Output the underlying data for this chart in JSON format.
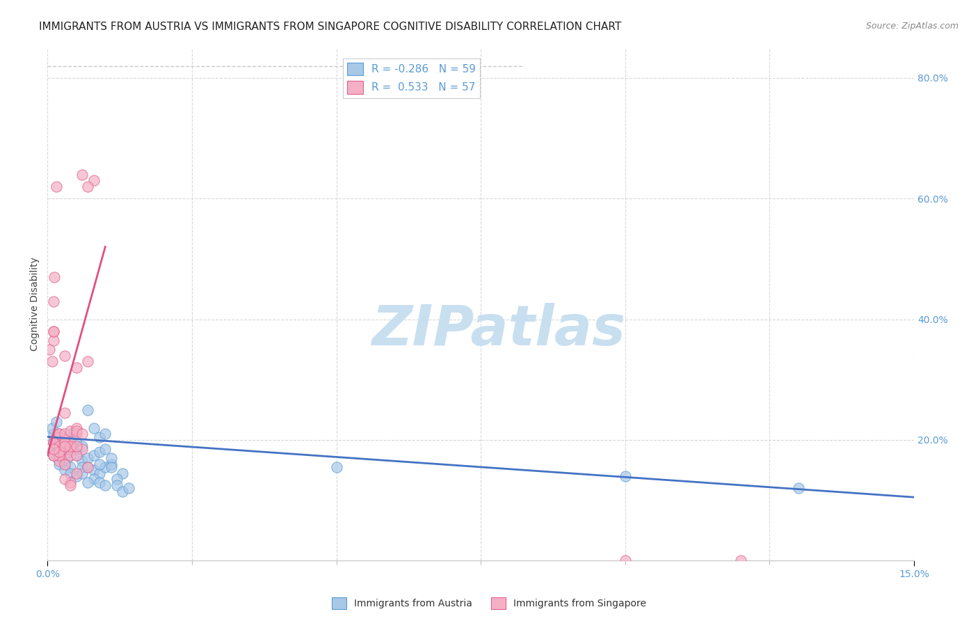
{
  "title": "IMMIGRANTS FROM AUSTRIA VS IMMIGRANTS FROM SINGAPORE COGNITIVE DISABILITY CORRELATION CHART",
  "source": "Source: ZipAtlas.com",
  "ylabel": "Cognitive Disability",
  "right_yticks": [
    0.2,
    0.4,
    0.6,
    0.8
  ],
  "right_ytick_labels": [
    "20.0%",
    "40.0%",
    "60.0%",
    "80.0%"
  ],
  "xlim": [
    0.0,
    0.15
  ],
  "ylim": [
    0.0,
    0.85
  ],
  "austria_color": "#a8c8e8",
  "singapore_color": "#f4b0c4",
  "austria_edge_color": "#5b9bd5",
  "singapore_edge_color": "#e06090",
  "austria_line_color": "#4472c4",
  "singapore_line_color": "#e05080",
  "right_axis_color": "#5b9bd5",
  "grid_color": "#d8d8d8",
  "watermark_color": "#c8dff0",
  "background_color": "#ffffff",
  "title_fontsize": 11,
  "axis_label_fontsize": 10,
  "tick_fontsize": 10,
  "source_fontsize": 9,
  "legend_label_color": "#5b9bd5",
  "legend_austria_label": "R = -0.286   N = 59",
  "legend_singapore_label": "R =  0.533   N = 57",
  "bottom_legend_austria": "Immigrants from Austria",
  "bottom_legend_singapore": "Immigrants from Singapore",
  "austria_trend": [
    0.0,
    0.15,
    0.205,
    0.105
  ],
  "singapore_trend": [
    0.0,
    0.01,
    0.175,
    0.52
  ],
  "diag_line": [
    0.0,
    0.0825,
    0.82,
    0.82
  ],
  "austria_points": [
    [
      0.001,
      0.195
    ],
    [
      0.002,
      0.19
    ],
    [
      0.0015,
      0.18
    ],
    [
      0.001,
      0.21
    ],
    [
      0.003,
      0.19
    ],
    [
      0.0008,
      0.22
    ],
    [
      0.0018,
      0.17
    ],
    [
      0.003,
      0.185
    ],
    [
      0.004,
      0.21
    ],
    [
      0.002,
      0.175
    ],
    [
      0.001,
      0.185
    ],
    [
      0.003,
      0.175
    ],
    [
      0.0035,
      0.17
    ],
    [
      0.005,
      0.195
    ],
    [
      0.003,
      0.16
    ],
    [
      0.004,
      0.155
    ],
    [
      0.005,
      0.175
    ],
    [
      0.006,
      0.165
    ],
    [
      0.007,
      0.17
    ],
    [
      0.005,
      0.185
    ],
    [
      0.006,
      0.19
    ],
    [
      0.007,
      0.25
    ],
    [
      0.008,
      0.22
    ],
    [
      0.009,
      0.205
    ],
    [
      0.01,
      0.21
    ],
    [
      0.008,
      0.175
    ],
    [
      0.009,
      0.18
    ],
    [
      0.01,
      0.185
    ],
    [
      0.006,
      0.155
    ],
    [
      0.007,
      0.155
    ],
    [
      0.008,
      0.15
    ],
    [
      0.009,
      0.145
    ],
    [
      0.01,
      0.155
    ],
    [
      0.011,
      0.16
    ],
    [
      0.008,
      0.135
    ],
    [
      0.009,
      0.13
    ],
    [
      0.01,
      0.125
    ],
    [
      0.009,
      0.16
    ],
    [
      0.011,
      0.17
    ],
    [
      0.013,
      0.145
    ],
    [
      0.012,
      0.135
    ],
    [
      0.011,
      0.155
    ],
    [
      0.012,
      0.125
    ],
    [
      0.013,
      0.115
    ],
    [
      0.014,
      0.12
    ],
    [
      0.001,
      0.175
    ],
    [
      0.002,
      0.16
    ],
    [
      0.003,
      0.15
    ],
    [
      0.004,
      0.145
    ],
    [
      0.005,
      0.14
    ],
    [
      0.006,
      0.145
    ],
    [
      0.007,
      0.13
    ],
    [
      0.05,
      0.155
    ],
    [
      0.1,
      0.14
    ],
    [
      0.13,
      0.12
    ],
    [
      0.001,
      0.2
    ],
    [
      0.002,
      0.205
    ],
    [
      0.003,
      0.195
    ],
    [
      0.0015,
      0.23
    ]
  ],
  "singapore_points": [
    [
      0.0003,
      0.35
    ],
    [
      0.001,
      0.43
    ],
    [
      0.0012,
      0.47
    ],
    [
      0.0008,
      0.33
    ],
    [
      0.001,
      0.365
    ],
    [
      0.001,
      0.38
    ],
    [
      0.001,
      0.195
    ],
    [
      0.002,
      0.21
    ],
    [
      0.002,
      0.205
    ],
    [
      0.002,
      0.195
    ],
    [
      0.002,
      0.185
    ],
    [
      0.002,
      0.175
    ],
    [
      0.002,
      0.21
    ],
    [
      0.003,
      0.175
    ],
    [
      0.003,
      0.185
    ],
    [
      0.003,
      0.245
    ],
    [
      0.003,
      0.2
    ],
    [
      0.003,
      0.21
    ],
    [
      0.004,
      0.19
    ],
    [
      0.004,
      0.215
    ],
    [
      0.004,
      0.185
    ],
    [
      0.004,
      0.195
    ],
    [
      0.005,
      0.22
    ],
    [
      0.005,
      0.32
    ],
    [
      0.005,
      0.21
    ],
    [
      0.005,
      0.215
    ],
    [
      0.006,
      0.185
    ],
    [
      0.006,
      0.21
    ],
    [
      0.007,
      0.33
    ],
    [
      0.007,
      0.155
    ],
    [
      0.001,
      0.175
    ],
    [
      0.002,
      0.165
    ],
    [
      0.003,
      0.16
    ],
    [
      0.004,
      0.175
    ],
    [
      0.005,
      0.175
    ],
    [
      0.001,
      0.195
    ],
    [
      0.002,
      0.19
    ],
    [
      0.003,
      0.195
    ],
    [
      0.004,
      0.19
    ],
    [
      0.005,
      0.19
    ],
    [
      0.001,
      0.38
    ],
    [
      0.002,
      0.175
    ],
    [
      0.003,
      0.34
    ],
    [
      0.001,
      0.175
    ],
    [
      0.002,
      0.18
    ],
    [
      0.003,
      0.19
    ],
    [
      0.004,
      0.13
    ],
    [
      0.005,
      0.145
    ],
    [
      0.001,
      0.185
    ],
    [
      0.003,
      0.135
    ],
    [
      0.004,
      0.125
    ],
    [
      0.0015,
      0.62
    ],
    [
      0.008,
      0.63
    ],
    [
      0.006,
      0.64
    ],
    [
      0.007,
      0.62
    ],
    [
      0.1,
      0.0
    ],
    [
      0.12,
      0.0
    ]
  ]
}
